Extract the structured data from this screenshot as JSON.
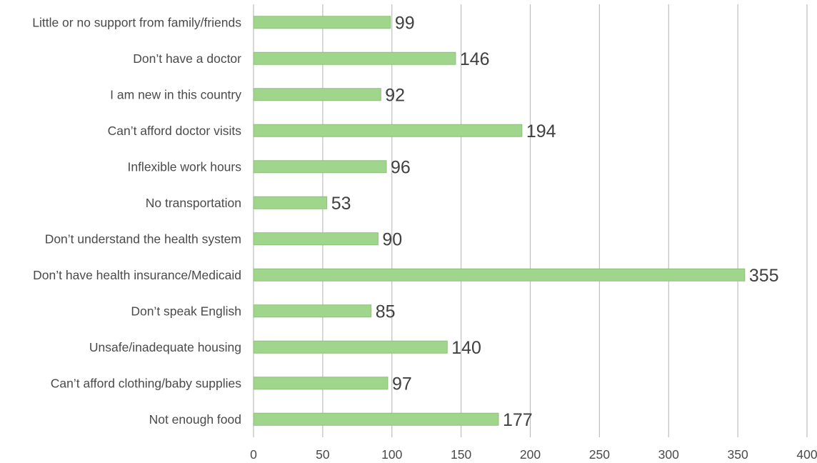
{
  "chart_data": {
    "type": "bar",
    "orientation": "horizontal",
    "title": "",
    "xlabel": "",
    "ylabel": "",
    "categories": [
      "Little or no support from family/friends",
      "Don’t have a doctor",
      "I am new in this country",
      "Can’t afford doctor visits",
      "Inflexible work hours",
      "No transportation",
      "Don’t understand the health system",
      "Don’t have health insurance/Medicaid",
      "Don’t speak English",
      "Unsafe/inadequate housing",
      "Can’t afford clothing/baby supplies",
      "Not enough food"
    ],
    "values": [
      99,
      146,
      92,
      194,
      96,
      53,
      90,
      355,
      85,
      140,
      97,
      177
    ],
    "value_labels": [
      "99",
      "146",
      "92",
      "194",
      "96",
      "53",
      "90",
      "355",
      "85",
      "140",
      "97",
      "177"
    ],
    "xlim": [
      0,
      400
    ],
    "x_ticks": [
      0,
      50,
      100,
      150,
      200,
      250,
      300,
      350,
      400
    ],
    "x_tick_labels": [
      "0",
      "50",
      "100",
      "150",
      "200",
      "250",
      "300",
      "350",
      "400"
    ],
    "grid": "vertical",
    "legend": "none",
    "colors": {
      "bar_fill": "#a0d68c",
      "bar_stroke": "#8fbf7d",
      "grid": "#bfbfbf",
      "label_text": "#4a4a4a",
      "value_text": "#404040"
    }
  }
}
